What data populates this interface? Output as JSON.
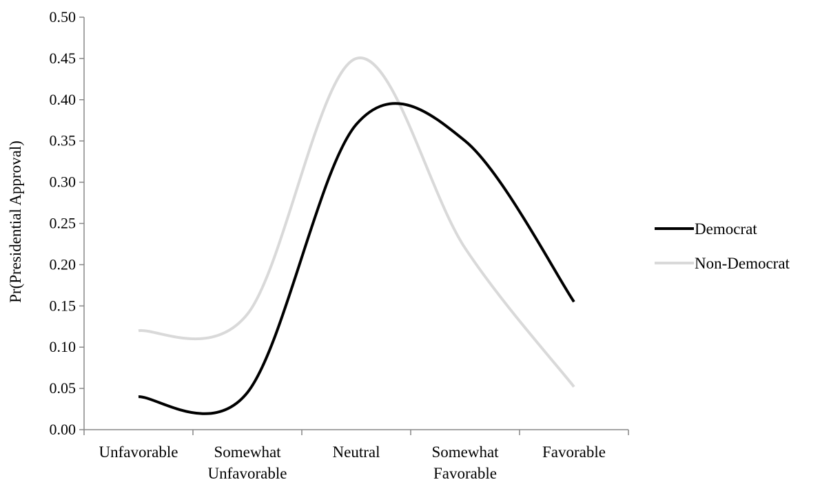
{
  "chart_data": {
    "type": "line",
    "smooth": true,
    "categories": [
      "Unfavorable",
      "Somewhat Unfavorable",
      "Neutral",
      "Somewhat Favorable",
      "Favorable"
    ],
    "category_lines": [
      [
        "Unfavorable"
      ],
      [
        "Somewhat",
        "Unfavorable"
      ],
      [
        "Neutral"
      ],
      [
        "Somewhat",
        "Favorable"
      ],
      [
        "Favorable"
      ]
    ],
    "ylabel": "Pr(Presidential Approval)",
    "ylim": [
      0,
      0.5
    ],
    "yticks": [
      "0.00",
      "0.05",
      "0.10",
      "0.15",
      "0.20",
      "0.25",
      "0.30",
      "0.35",
      "0.40",
      "0.45",
      "0.50"
    ],
    "grid": false,
    "legend_position": "right",
    "series": [
      {
        "name": "Democrat",
        "values": [
          0.04,
          0.045,
          0.37,
          0.35,
          0.155
        ],
        "color": "#000000"
      },
      {
        "name": "Non-Democrat",
        "values": [
          0.12,
          0.14,
          0.45,
          0.22,
          0.052
        ],
        "color": "#d9d9d9"
      }
    ]
  }
}
